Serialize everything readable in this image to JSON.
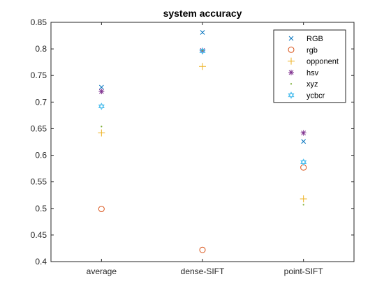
{
  "chart_data": {
    "type": "scatter",
    "title": "system accuracy",
    "xlabel": "",
    "ylabel": "",
    "categories": [
      "average",
      "dense-SIFT",
      "point-SIFT"
    ],
    "ylim": [
      0.4,
      0.85
    ],
    "yticks": [
      0.4,
      0.45,
      0.5,
      0.55,
      0.6,
      0.65,
      0.7,
      0.75,
      0.8,
      0.85
    ],
    "grid": false,
    "legend_position": "top-right",
    "series": [
      {
        "name": "RGB",
        "marker": "x",
        "color": "#0072BD",
        "values": [
          0.728,
          0.831,
          0.626
        ]
      },
      {
        "name": "rgb",
        "marker": "circle",
        "color": "#D95319",
        "values": [
          0.499,
          0.422,
          0.577
        ]
      },
      {
        "name": "opponent",
        "marker": "plus",
        "color": "#EDB120",
        "values": [
          0.642,
          0.767,
          0.518
        ]
      },
      {
        "name": "hsv",
        "marker": "star",
        "color": "#7E2F8E",
        "values": [
          0.72,
          0.797,
          0.642
        ]
      },
      {
        "name": "xyz",
        "marker": "point",
        "color": "#77AC30",
        "values": [
          0.654,
          0.797,
          0.507
        ]
      },
      {
        "name": "ycbcr",
        "marker": "hexagram",
        "color": "#4DBEEE",
        "values": [
          0.692,
          0.796,
          0.587
        ]
      }
    ]
  }
}
